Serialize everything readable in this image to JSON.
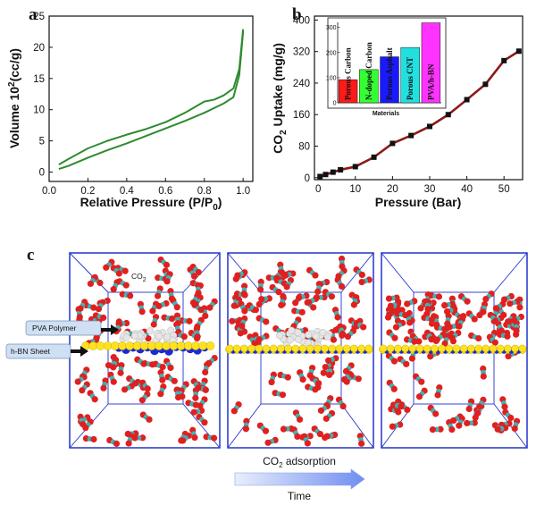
{
  "panels": {
    "a": "a",
    "b": "b",
    "c": "c"
  },
  "chart_data": [
    {
      "panel": "a",
      "type": "line",
      "title": "",
      "xlabel_main": "Relative Pressure (P/P",
      "xlabel_sub": "0",
      "xlabel_end": ")",
      "ylabel_main": "Volume 10",
      "ylabel_sup": "2",
      "ylabel_end": "(cc/g)",
      "xlim": [
        0.0,
        1.05
      ],
      "ylim": [
        -1.5,
        25
      ],
      "xticks": [
        0.0,
        0.2,
        0.4,
        0.6,
        0.8,
        1.0
      ],
      "xtick_labels": [
        "0.0",
        "0.2",
        "0.4",
        "0.6",
        "0.8",
        "1.0"
      ],
      "yticks": [
        0,
        5,
        10,
        15,
        20,
        25
      ],
      "ytick_labels": [
        "0",
        "5",
        "10",
        "15",
        "20",
        "25"
      ],
      "color": "#2e8b2e",
      "series": [
        {
          "name": "Adsorption",
          "x": [
            0.05,
            0.1,
            0.2,
            0.3,
            0.4,
            0.5,
            0.6,
            0.7,
            0.8,
            0.9,
            0.95,
            0.98,
            1.0
          ],
          "y": [
            0.5,
            1.0,
            2.3,
            3.5,
            4.6,
            5.8,
            7.0,
            8.2,
            9.5,
            11.0,
            12.0,
            15.5,
            22.5
          ]
        },
        {
          "name": "Desorption",
          "x": [
            1.0,
            0.98,
            0.95,
            0.9,
            0.85,
            0.8,
            0.7,
            0.6,
            0.5,
            0.4,
            0.3,
            0.2,
            0.1,
            0.05
          ],
          "y": [
            22.9,
            16.5,
            13.4,
            12.3,
            11.6,
            11.3,
            9.5,
            8.0,
            6.9,
            6.0,
            5.0,
            3.8,
            2.1,
            1.2
          ]
        }
      ]
    },
    {
      "panel": "b",
      "type": "line",
      "title": "",
      "xlabel": "Pressure (Bar)",
      "ylabel_main": "CO",
      "ylabel_sub": "2",
      "ylabel_end": " Uptake (mg/g)",
      "xlim": [
        -1,
        55
      ],
      "ylim": [
        -5,
        410
      ],
      "xticks": [
        0,
        10,
        20,
        30,
        40,
        50
      ],
      "xtick_labels": [
        "0",
        "10",
        "20",
        "30",
        "40",
        "50"
      ],
      "yticks": [
        0,
        80,
        160,
        240,
        320,
        400
      ],
      "ytick_labels": [
        "0",
        "80",
        "160",
        "240",
        "320",
        "400"
      ],
      "series": [
        {
          "name": "PVA/h-BN",
          "line_color": "#8b1a1a",
          "marker_color": "#111111",
          "x": [
            0.5,
            2,
            4,
            6,
            10,
            15,
            20,
            25,
            30,
            35,
            40,
            45,
            50,
            54
          ],
          "y": [
            3,
            8,
            14,
            20,
            28,
            52,
            87,
            107,
            130,
            160,
            198,
            237,
            297,
            321
          ]
        }
      ],
      "inset": {
        "type": "bar",
        "xlabel": "Materials",
        "ylim": [
          0,
          320
        ],
        "yticks": [
          0,
          100,
          200,
          300
        ],
        "ytick_labels": [
          "0",
          "100",
          "200",
          "300"
        ],
        "categories": [
          "Porous Carbon",
          "N-doped Carbon",
          "Porous Asphalt",
          "Porous CNT",
          "PVA/h-BN"
        ],
        "values": [
          92,
          132,
          183,
          220,
          318
        ],
        "colors": [
          "#ff1a1a",
          "#33ff33",
          "#1a1aff",
          "#22e0e0",
          "#ff33ff"
        ]
      }
    }
  ],
  "panel_c": {
    "co2_label_main": "CO",
    "co2_label_sub": "2",
    "pva_label": "PVA Polymer",
    "hbn_label": "h-BN Sheet",
    "adsorption_main": "CO",
    "adsorption_sub": "2",
    "adsorption_end": " adsorption",
    "time_label": "Time",
    "colors": {
      "box": "#2233cc",
      "oxygen": "#e02020",
      "carbon": "#3cb4b4",
      "boron": "#ffe21f",
      "nitrogen": "#1a2ad8",
      "polymer": "#e6e6e6"
    }
  }
}
